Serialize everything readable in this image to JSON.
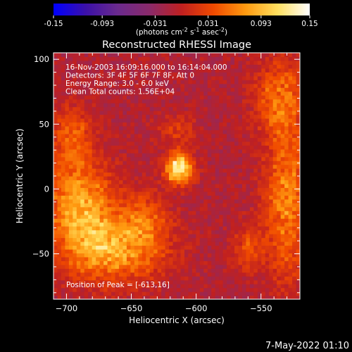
{
  "chart_data": {
    "type": "heatmap",
    "title": "Reconstructed RHESSI Image",
    "xlabel": "Heliocentric X (arcsec)",
    "ylabel": "Heliocentric Y (arcsec)",
    "xlim": [
      -710,
      -520
    ],
    "ylim": [
      -85,
      105
    ],
    "x_ticks": [
      -700,
      -650,
      -600,
      -550
    ],
    "y_ticks": [
      -50,
      0,
      50,
      100
    ],
    "colorbar": {
      "min": -0.15,
      "max": 0.15,
      "ticks": [
        "-0.15",
        "-0.093",
        "-0.031",
        "0.031",
        "0.093",
        "0.15"
      ],
      "tick_values": [
        -0.15,
        -0.093,
        -0.031,
        0.031,
        0.093,
        0.15
      ],
      "unit_prefix": "(photons cm",
      "unit_exp1": "-2",
      "unit_mid": " s",
      "unit_exp2": "-1",
      "unit_mid2": " asec",
      "unit_exp3": "-2",
      "unit_suffix": ")",
      "colors": [
        "#0000ff",
        "#3b10a8",
        "#6a2a8e",
        "#8a2a6a",
        "#c02020",
        "#f04a00",
        "#ff9a10",
        "#ffe060",
        "#ffffff"
      ]
    },
    "annotations": [
      "16-Nov-2003 16:09:16.000 to 16:14:04.000",
      "Detectors: 3F 4F 5F 6F 7F 8F, Att 0",
      "Energy Range: 3.0 - 6.0 keV",
      "Clean     Total counts: 1.56E+04"
    ],
    "peak_label": "Position of Peak = [-613,16]",
    "peak": {
      "x": -613,
      "y": 16,
      "value": 0.15
    },
    "emission_regions": [
      {
        "x": -690,
        "y": -10,
        "sx": 18,
        "sy": 22,
        "amp": 0.085
      },
      {
        "x": -665,
        "y": -45,
        "sx": 28,
        "sy": 18,
        "amp": 0.095
      },
      {
        "x": -695,
        "y": 40,
        "sx": 12,
        "sy": 18,
        "amp": 0.05
      },
      {
        "x": -640,
        "y": -20,
        "sx": 12,
        "sy": 14,
        "amp": 0.04
      },
      {
        "x": -530,
        "y": -10,
        "sx": 12,
        "sy": 40,
        "amp": 0.075
      },
      {
        "x": -535,
        "y": 70,
        "sx": 14,
        "sy": 20,
        "amp": 0.06
      },
      {
        "x": -560,
        "y": -45,
        "sx": 8,
        "sy": 12,
        "amp": 0.045
      },
      {
        "x": -615,
        "y": 45,
        "sx": 10,
        "sy": 8,
        "amp": 0.035
      }
    ],
    "background_level": -0.01,
    "grid": false
  },
  "timestamp": "7-May-2022 01:10"
}
